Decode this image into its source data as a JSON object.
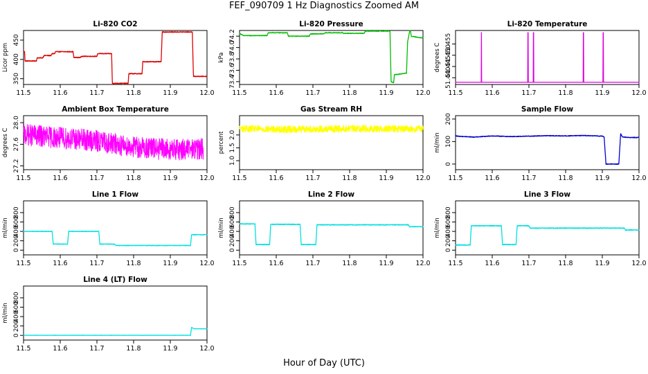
{
  "title": "FEF_090709  1 Hz Diagnostics Zoomed AM",
  "xlabel": "Hour of Day (UTC)",
  "chart_data": [
    {
      "type": "line",
      "title": "Li-820 CO2",
      "ylabel": "Licor ppm",
      "color": "#dd0000",
      "xlim": [
        11.5,
        12.0
      ],
      "xticks": [
        11.5,
        11.6,
        11.7,
        11.8,
        11.9,
        12.0
      ],
      "xtick_labels": [
        "11.5",
        "11.6",
        "11.7",
        "11.8",
        "11.9",
        "12.0"
      ],
      "ylim": [
        335,
        475
      ],
      "yticks": [
        350,
        400,
        450
      ],
      "ytick_labels": [
        "350",
        "400",
        "450"
      ],
      "x": [
        11.5,
        11.503,
        11.504,
        11.535,
        11.537,
        11.552,
        11.556,
        11.575,
        11.578,
        11.585,
        11.587,
        11.635,
        11.637,
        11.655,
        11.658,
        11.7,
        11.702,
        11.74,
        11.742,
        11.785,
        11.787,
        11.823,
        11.825,
        11.875,
        11.878,
        11.96,
        11.963,
        12.0
      ],
      "values": [
        420,
        420,
        396,
        396,
        404,
        404,
        410,
        410,
        415,
        415,
        420,
        420,
        405,
        405,
        408,
        408,
        415,
        415,
        338,
        338,
        363,
        363,
        394,
        394,
        471,
        471,
        356,
        356
      ],
      "noise": 1.0
    },
    {
      "type": "line",
      "title": "Li-820 Pressure",
      "ylabel": "kPa",
      "color": "#00bb00",
      "xlim": [
        11.5,
        12.0
      ],
      "xticks": [
        11.5,
        11.6,
        11.7,
        11.8,
        11.9,
        12.0
      ],
      "xtick_labels": [
        "11.5",
        "11.6",
        "11.7",
        "11.8",
        "11.9",
        "12.0"
      ],
      "ylim": [
        73.35,
        74.3
      ],
      "yticks": [
        73.4,
        73.6,
        73.8,
        74.0,
        74.2
      ],
      "ytick_labels": [
        "73.4",
        "73.6",
        "73.8",
        "74.0",
        "74.2"
      ],
      "x": [
        11.5,
        11.51,
        11.512,
        11.575,
        11.578,
        11.63,
        11.633,
        11.69,
        11.693,
        11.73,
        11.733,
        11.78,
        11.783,
        11.84,
        11.843,
        11.91,
        11.913,
        11.92,
        11.922,
        11.955,
        11.958,
        11.965,
        11.968,
        11.985,
        12.0
      ],
      "values": [
        74.25,
        74.21,
        74.21,
        74.21,
        74.26,
        74.26,
        74.2,
        74.2,
        74.24,
        74.24,
        74.26,
        74.26,
        74.25,
        74.25,
        74.29,
        74.29,
        73.4,
        73.38,
        73.52,
        73.55,
        74.1,
        74.33,
        74.2,
        74.18,
        74.17
      ],
      "noise": 0.006
    },
    {
      "type": "line",
      "title": "Li-820 Temperature",
      "ylabel": "degrees C",
      "color": "#dd00dd",
      "xlim": [
        11.5,
        12.0
      ],
      "xticks": [
        11.5,
        11.6,
        11.7,
        11.8,
        11.9,
        12.0
      ],
      "xtick_labels": [
        "11.5",
        "11.6",
        "11.7",
        "11.8",
        "11.9",
        "12.0"
      ],
      "ylim": [
        51.437,
        51.461
      ],
      "yticks": [
        51.44,
        51.445,
        51.45,
        51.455
      ],
      "ytick_labels": [
        "51.440",
        "51.445",
        "51.450",
        "51.455"
      ],
      "x": [
        11.5,
        11.57,
        11.57,
        11.571,
        11.571,
        11.697,
        11.697,
        11.698,
        11.698,
        11.712,
        11.712,
        11.713,
        11.713,
        11.848,
        11.848,
        11.849,
        11.849,
        11.902,
        11.902,
        11.903,
        11.903,
        12.0
      ],
      "values": [
        51.438,
        51.438,
        51.46,
        51.46,
        51.438,
        51.438,
        51.46,
        51.46,
        51.438,
        51.438,
        51.46,
        51.46,
        51.438,
        51.438,
        51.46,
        51.46,
        51.438,
        51.438,
        51.46,
        51.46,
        51.438,
        51.438
      ],
      "noise": 0
    },
    {
      "type": "line",
      "title": "Ambient Box Temperature",
      "ylabel": "degrees C",
      "color": "#ff00ff",
      "xlim": [
        11.5,
        12.0
      ],
      "xticks": [
        11.5,
        11.6,
        11.7,
        11.8,
        11.9,
        12.0
      ],
      "xtick_labels": [
        "11.5",
        "11.6",
        "11.7",
        "11.8",
        "11.9",
        "12.0"
      ],
      "ylim": [
        27.13,
        28.13
      ],
      "yticks": [
        27.2,
        27.6,
        28.0
      ],
      "ytick_labels": [
        "27.2",
        "27.6",
        "28.0"
      ],
      "x": [
        11.5,
        11.6,
        11.7,
        11.8,
        11.9,
        11.99
      ],
      "values": [
        27.78,
        27.72,
        27.66,
        27.55,
        27.5,
        27.52
      ],
      "noise": 0.2
    },
    {
      "type": "line",
      "title": "Gas Stream RH",
      "ylabel": "percent",
      "color": "#ffff00",
      "xlim": [
        11.5,
        12.0
      ],
      "xticks": [
        11.5,
        11.6,
        11.7,
        11.8,
        11.9,
        12.0
      ],
      "xtick_labels": [
        "11.5",
        "11.6",
        "11.7",
        "11.8",
        "11.9",
        "12.0"
      ],
      "ylim": [
        0.65,
        2.75
      ],
      "yticks": [
        1.0,
        1.5,
        2.0
      ],
      "ytick_labels": [
        "1.0",
        "1.5",
        "2.0"
      ],
      "x": [
        11.5,
        11.6,
        11.7,
        11.8,
        11.9,
        12.0
      ],
      "values": [
        2.25,
        2.22,
        2.23,
        2.25,
        2.24,
        2.23
      ],
      "noise": 0.14
    },
    {
      "type": "line",
      "title": "Sample Flow",
      "ylabel": "ml/min",
      "color": "#0000cc",
      "xlim": [
        11.5,
        12.0
      ],
      "xticks": [
        11.5,
        11.6,
        11.7,
        11.8,
        11.9,
        12.0
      ],
      "xtick_labels": [
        "11.5",
        "11.6",
        "11.7",
        "11.8",
        "11.9",
        "12.0"
      ],
      "ylim": [
        -25,
        215
      ],
      "yticks": [
        0,
        100,
        200
      ],
      "ytick_labels": [
        "0",
        "100",
        "200"
      ],
      "x": [
        11.5,
        11.503,
        11.55,
        11.6,
        11.65,
        11.7,
        11.75,
        11.8,
        11.85,
        11.9,
        11.905,
        11.91,
        11.945,
        11.95,
        11.955,
        11.975,
        12.0
      ],
      "values": [
        128,
        124,
        120,
        125,
        122,
        124,
        126,
        125,
        127,
        124,
        120,
        0,
        0,
        135,
        120,
        118,
        118
      ],
      "noise": 1.5
    },
    {
      "type": "line",
      "title": "Line 1 Flow",
      "ylabel": "ml/min",
      "color": "#00e0e0",
      "xlim": [
        11.5,
        12.0
      ],
      "xticks": [
        11.5,
        11.6,
        11.7,
        11.8,
        11.9,
        12.0
      ],
      "xtick_labels": [
        "11.5",
        "11.6",
        "11.7",
        "11.8",
        "11.9",
        "12.0"
      ],
      "ylim": [
        -100,
        1050
      ],
      "yticks": [
        0,
        200,
        400,
        600,
        800
      ],
      "ytick_labels": [
        "0",
        "200",
        "400",
        "600",
        "800"
      ],
      "x": [
        11.5,
        11.578,
        11.581,
        11.62,
        11.623,
        11.705,
        11.708,
        11.748,
        11.751,
        11.955,
        11.958,
        12.0
      ],
      "values": [
        400,
        400,
        130,
        130,
        400,
        400,
        130,
        130,
        100,
        100,
        330,
        330
      ],
      "noise": 6
    },
    {
      "type": "line",
      "title": "Line 2 Flow",
      "ylabel": "ml/min",
      "color": "#00e0e0",
      "xlim": [
        11.5,
        12.0
      ],
      "xticks": [
        11.5,
        11.6,
        11.7,
        11.8,
        11.9,
        12.0
      ],
      "xtick_labels": [
        "11.5",
        "11.6",
        "11.7",
        "11.8",
        "11.9",
        "12.0"
      ],
      "ylim": [
        -100,
        1050
      ],
      "yticks": [
        0,
        200,
        400,
        600,
        800
      ],
      "ytick_labels": [
        "0",
        "200",
        "400",
        "600",
        "800"
      ],
      "x": [
        11.5,
        11.542,
        11.545,
        11.582,
        11.585,
        11.665,
        11.668,
        11.708,
        11.711,
        11.96,
        11.963,
        12.0
      ],
      "values": [
        560,
        560,
        120,
        120,
        550,
        550,
        120,
        120,
        540,
        540,
        500,
        500
      ],
      "noise": 8
    },
    {
      "type": "line",
      "title": "Line 3 Flow",
      "ylabel": "ml/min",
      "color": "#00e0e0",
      "xlim": [
        11.5,
        12.0
      ],
      "xticks": [
        11.5,
        11.6,
        11.7,
        11.8,
        11.9,
        12.0
      ],
      "xtick_labels": [
        "11.5",
        "11.6",
        "11.7",
        "11.8",
        "11.9",
        "12.0"
      ],
      "ylim": [
        -100,
        1050
      ],
      "yticks": [
        0,
        200,
        400,
        600,
        800
      ],
      "ytick_labels": [
        "0",
        "200",
        "400",
        "600",
        "800"
      ],
      "x": [
        11.5,
        11.54,
        11.543,
        11.625,
        11.628,
        11.665,
        11.668,
        11.7,
        11.703,
        11.96,
        11.963,
        12.0
      ],
      "values": [
        110,
        110,
        520,
        520,
        120,
        120,
        520,
        520,
        470,
        470,
        430,
        430
      ],
      "noise": 8
    },
    {
      "type": "line",
      "title": "Line 4 (LT) Flow",
      "ylabel": "ml/min",
      "color": "#00e0e0",
      "xlim": [
        11.5,
        12.0
      ],
      "xticks": [
        11.5,
        11.6,
        11.7,
        11.8,
        11.9,
        12.0
      ],
      "xtick_labels": [
        "11.5",
        "11.6",
        "11.7",
        "11.8",
        "11.9",
        "12.0"
      ],
      "ylim": [
        -100,
        1050
      ],
      "yticks": [
        0,
        200,
        400,
        600,
        800
      ],
      "ytick_labels": [
        "0",
        "200",
        "400",
        "600",
        "800"
      ],
      "x": [
        11.5,
        11.955,
        11.958,
        11.965,
        12.0
      ],
      "values": [
        2,
        2,
        170,
        140,
        140
      ],
      "noise": 3
    }
  ]
}
